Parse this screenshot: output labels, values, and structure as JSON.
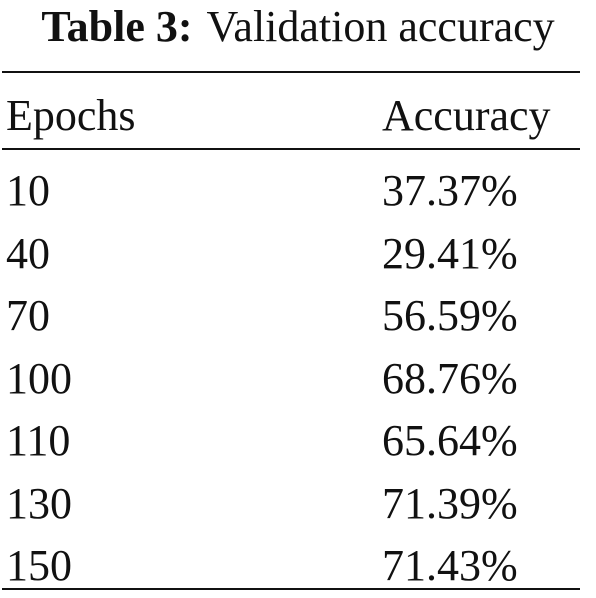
{
  "caption": {
    "label": "Table 3:",
    "text": "Validation accuracy"
  },
  "table": {
    "headers": [
      "Epochs",
      "Accuracy"
    ],
    "rows": [
      [
        "10",
        "37.37%"
      ],
      [
        "40",
        "29.41%"
      ],
      [
        "70",
        "56.59%"
      ],
      [
        "100",
        "68.76%"
      ],
      [
        "110",
        "65.64%"
      ],
      [
        "130",
        "71.39%"
      ],
      [
        "150",
        "71.43%"
      ]
    ]
  }
}
